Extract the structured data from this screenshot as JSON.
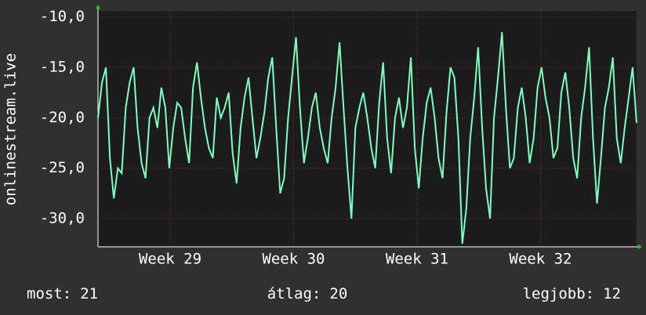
{
  "chart_data": {
    "type": "line",
    "y_label": "onlinestream.live",
    "xlim": [
      28.416,
      32.778
    ],
    "xticks": [
      {
        "value": 29,
        "label": "Week 29"
      },
      {
        "value": 30,
        "label": "Week 30"
      },
      {
        "value": 31,
        "label": "Week 31"
      },
      {
        "value": 32,
        "label": "Week 32"
      }
    ],
    "ylim": [
      -32.8,
      -9.4
    ],
    "yticks": [
      {
        "value": -10,
        "label": "-10,0"
      },
      {
        "value": -15,
        "label": "-15,0"
      },
      {
        "value": -20,
        "label": "-20,0"
      },
      {
        "value": -25,
        "label": "-25,0"
      },
      {
        "value": -30,
        "label": "-30,0"
      }
    ],
    "grid": true,
    "series": [
      {
        "name": "onlinestream.live",
        "color": "#80ffc0",
        "values": [
          -20,
          -16.5,
          -15,
          -24,
          -28,
          -25,
          -25.5,
          -19,
          -16.5,
          -15,
          -21,
          -24.5,
          -26,
          -20,
          -19,
          -21,
          -17,
          -19,
          -25,
          -21,
          -18.5,
          -19,
          -22,
          -24.5,
          -17,
          -14.5,
          -18,
          -21,
          -23,
          -24,
          -18,
          -20,
          -19,
          -17.5,
          -23.5,
          -26.5,
          -21,
          -18,
          -16,
          -20,
          -24,
          -22,
          -19.5,
          -16,
          -14,
          -21,
          -27.5,
          -26,
          -20,
          -16,
          -12,
          -19,
          -24.5,
          -22,
          -19,
          -17.5,
          -21,
          -23,
          -24.5,
          -20,
          -17,
          -12.5,
          -19,
          -25,
          -30,
          -21,
          -19,
          -17.5,
          -20,
          -23,
          -25,
          -18.5,
          -14.5,
          -22,
          -25.5,
          -20,
          -18,
          -21,
          -19,
          -14,
          -23,
          -27,
          -22,
          -18.5,
          -17,
          -20,
          -24,
          -26,
          -19.5,
          -15,
          -16,
          -22,
          -32.5,
          -29,
          -22,
          -18,
          -13,
          -21,
          -27,
          -30,
          -20,
          -16,
          -11.5,
          -19,
          -25,
          -24,
          -19,
          -17,
          -20,
          -24.5,
          -22,
          -17,
          -15,
          -18,
          -20,
          -24,
          -23,
          -17.5,
          -15.5,
          -19,
          -24,
          -26,
          -20,
          -17,
          -13,
          -22,
          -28.5,
          -24,
          -19,
          -17,
          -14,
          -22,
          -24.5,
          -21,
          -18,
          -15,
          -20.5
        ]
      }
    ],
    "legend": [
      {
        "label": "most:",
        "value": 21
      },
      {
        "label": "átlag:",
        "value": 20
      },
      {
        "label": "legjobb:",
        "value": 12
      }
    ]
  }
}
